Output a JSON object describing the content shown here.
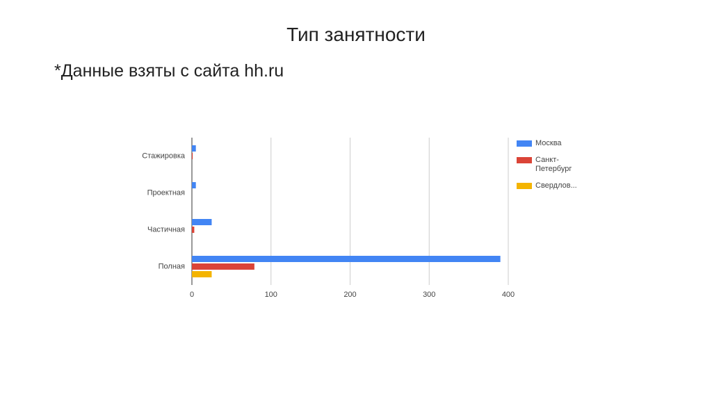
{
  "slide": {
    "title": "Тип занятности",
    "subtitle": "*Данные взяты с сайта hh.ru"
  },
  "chart_data": {
    "type": "hbar",
    "categories": [
      "Стажировка",
      "Проектная",
      "Частичная",
      "Полная"
    ],
    "series": [
      {
        "name": "Москва",
        "color": "#4285f4",
        "values": [
          5,
          5,
          25,
          390
        ]
      },
      {
        "name": "Санкт-Петербург",
        "color": "#db4437",
        "values": [
          1,
          0,
          3,
          79
        ]
      },
      {
        "name": "Свердлов...",
        "color": "#f4b400",
        "values": [
          0,
          0,
          0,
          25
        ]
      }
    ],
    "xlim": [
      0,
      400
    ],
    "xticks": [
      0,
      100,
      200,
      300,
      400
    ],
    "grid": true,
    "legend": "right"
  }
}
